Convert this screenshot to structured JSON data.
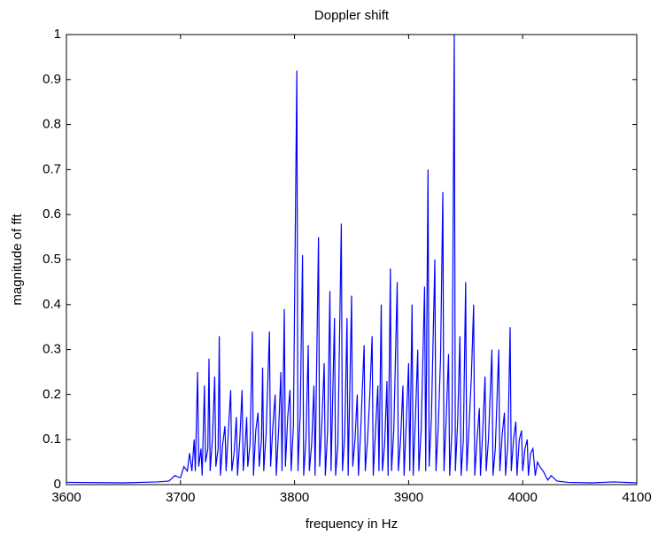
{
  "chart_data": {
    "type": "line",
    "title": "Doppler shift",
    "x_label": "frequency in Hz",
    "y_label": "magnitude of fft",
    "color": "#0000ff",
    "x": [
      3600,
      3650,
      3680,
      3690,
      3695,
      3700,
      3703,
      3706,
      3708,
      3710,
      3712,
      3713,
      3715,
      3716,
      3718,
      3719,
      3721,
      3722,
      3724,
      3725,
      3726,
      3728,
      3730,
      3731,
      3733,
      3734,
      3735,
      3737,
      3739,
      3740,
      3742,
      3744,
      3745,
      3747,
      3749,
      3750,
      3752,
      3754,
      3755,
      3757,
      3758,
      3759,
      3761,
      3763,
      3764,
      3766,
      3768,
      3769,
      3771,
      3772,
      3773,
      3775,
      3778,
      3779,
      3781,
      3783,
      3784,
      3786,
      3788,
      3789,
      3791,
      3792,
      3794,
      3796,
      3797,
      3799,
      3802,
      3803,
      3805,
      3807,
      3808,
      3810,
      3812,
      3813,
      3815,
      3817,
      3818,
      3821,
      3822,
      3824,
      3826,
      3827,
      3829,
      3831,
      3832,
      3835,
      3836,
      3838,
      3841,
      3842,
      3844,
      3846,
      3847,
      3850,
      3851,
      3853,
      3855,
      3856,
      3858,
      3861,
      3862,
      3864,
      3866,
      3868,
      3869,
      3871,
      3873,
      3874,
      3876,
      3877,
      3879,
      3881,
      3882,
      3884,
      3885,
      3887,
      3890,
      3891,
      3893,
      3895,
      3896,
      3898,
      3900,
      3901,
      3903,
      3904,
      3906,
      3908,
      3909,
      3911,
      3914,
      3915,
      3917,
      3918,
      3920,
      3923,
      3924,
      3926,
      3928,
      3930,
      3931,
      3933,
      3935,
      3936,
      3938,
      3940,
      3941,
      3943,
      3945,
      3946,
      3948,
      3950,
      3951,
      3953,
      3955,
      3957,
      3958,
      3960,
      3962,
      3963,
      3965,
      3967,
      3968,
      3970,
      3973,
      3974,
      3976,
      3979,
      3980,
      3982,
      3984,
      3985,
      3987,
      3989,
      3990,
      3992,
      3994,
      3995,
      3997,
      3999,
      4000,
      4002,
      4004,
      4005,
      4007,
      4009,
      4011,
      4013,
      4015,
      4018,
      4020,
      4022,
      4025,
      4030,
      4040,
      4060,
      4080,
      4100
    ],
    "values": [
      0.005,
      0.004,
      0.006,
      0.008,
      0.02,
      0.015,
      0.04,
      0.03,
      0.07,
      0.03,
      0.1,
      0.03,
      0.25,
      0.04,
      0.08,
      0.02,
      0.22,
      0.05,
      0.08,
      0.28,
      0.03,
      0.1,
      0.24,
      0.04,
      0.08,
      0.33,
      0.02,
      0.09,
      0.13,
      0.03,
      0.12,
      0.21,
      0.03,
      0.07,
      0.15,
      0.02,
      0.1,
      0.21,
      0.03,
      0.1,
      0.15,
      0.04,
      0.09,
      0.34,
      0.02,
      0.12,
      0.16,
      0.04,
      0.1,
      0.26,
      0.03,
      0.11,
      0.34,
      0.04,
      0.13,
      0.2,
      0.02,
      0.12,
      0.25,
      0.03,
      0.39,
      0.04,
      0.15,
      0.21,
      0.03,
      0.13,
      0.92,
      0.03,
      0.16,
      0.51,
      0.02,
      0.1,
      0.31,
      0.03,
      0.09,
      0.22,
      0.02,
      0.55,
      0.04,
      0.14,
      0.27,
      0.02,
      0.12,
      0.43,
      0.03,
      0.37,
      0.02,
      0.09,
      0.58,
      0.03,
      0.11,
      0.37,
      0.02,
      0.42,
      0.04,
      0.1,
      0.2,
      0.02,
      0.12,
      0.31,
      0.03,
      0.1,
      0.2,
      0.33,
      0.02,
      0.12,
      0.22,
      0.03,
      0.4,
      0.03,
      0.09,
      0.23,
      0.02,
      0.48,
      0.03,
      0.12,
      0.45,
      0.03,
      0.1,
      0.22,
      0.02,
      0.14,
      0.27,
      0.03,
      0.4,
      0.02,
      0.15,
      0.3,
      0.03,
      0.12,
      0.44,
      0.03,
      0.7,
      0.04,
      0.15,
      0.5,
      0.03,
      0.13,
      0.28,
      0.65,
      0.03,
      0.15,
      0.29,
      0.02,
      0.12,
      1,
      0.03,
      0.14,
      0.33,
      0.02,
      0.1,
      0.45,
      0.03,
      0.13,
      0.24,
      0.4,
      0.02,
      0.1,
      0.17,
      0.02,
      0.12,
      0.24,
      0.03,
      0.1,
      0.3,
      0.02,
      0.08,
      0.3,
      0.03,
      0.11,
      0.16,
      0.02,
      0.09,
      0.35,
      0.03,
      0.1,
      0.14,
      0.02,
      0.1,
      0.12,
      0.03,
      0.08,
      0.1,
      0.02,
      0.07,
      0.08,
      0.02,
      0.05,
      0.04,
      0.03,
      0.02,
      0.01,
      0.02,
      0.008,
      0.005,
      0.004,
      0.006,
      0.004
    ],
    "xlim": [
      3600,
      4100
    ],
    "xticks": [
      3600,
      3700,
      3800,
      3900,
      4000,
      4100
    ],
    "ylim": [
      0,
      1
    ],
    "yticks": [
      0,
      0.1,
      0.2,
      0.3,
      0.4,
      0.5,
      0.6,
      0.7,
      0.8,
      0.9,
      1
    ]
  }
}
